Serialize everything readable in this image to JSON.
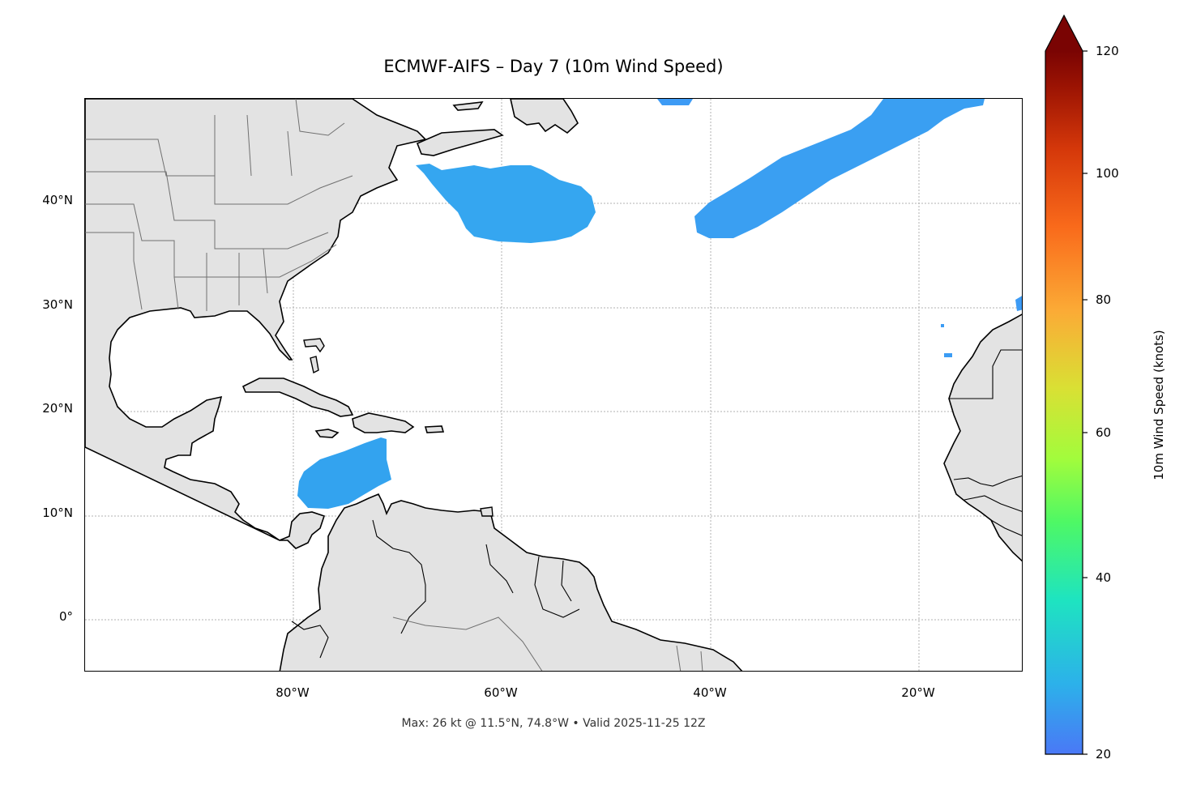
{
  "title": "ECMWF-AIFS – Day 7 (10m Wind Speed)",
  "footer": "Max: 26 kt @ 11.5°N, 74.8°W • Valid 2025-11-25 12Z",
  "colors": {
    "land": "#e3e3e3",
    "coast": "#000000",
    "borders": "#707070",
    "wind": "#3b9cf4",
    "grid": "#b0b0b0"
  },
  "map": {
    "lat_labels": [
      {
        "value": 40,
        "label": "40°N"
      },
      {
        "value": 30,
        "label": "30°N"
      },
      {
        "value": 20,
        "label": "20°N"
      },
      {
        "value": 10,
        "label": "10°N"
      },
      {
        "value": 0,
        "label": "0°"
      }
    ],
    "lon_labels": [
      {
        "value": -80,
        "label": "80°W"
      },
      {
        "value": -60,
        "label": "60°W"
      },
      {
        "value": -40,
        "label": "40°W"
      },
      {
        "value": -20,
        "label": "20°W"
      }
    ],
    "lon_range": [
      -100,
      -10
    ],
    "lat_range": [
      -5,
      50
    ]
  },
  "colorbar": {
    "label": "10m Wind Speed (knots)",
    "ticks": [
      "20",
      "40",
      "60",
      "80",
      "100",
      "120"
    ],
    "tick_values": [
      20,
      40,
      60,
      80,
      100,
      120
    ],
    "range": [
      20,
      120
    ],
    "colormap": [
      "#4a78f6",
      "#2cb1ea",
      "#1ee4c0",
      "#4ef865",
      "#a2fc3c",
      "#d9e034",
      "#fbab36",
      "#f96a1b",
      "#d5380a",
      "#9b1303",
      "#7a0403"
    ],
    "extend": "max"
  }
}
